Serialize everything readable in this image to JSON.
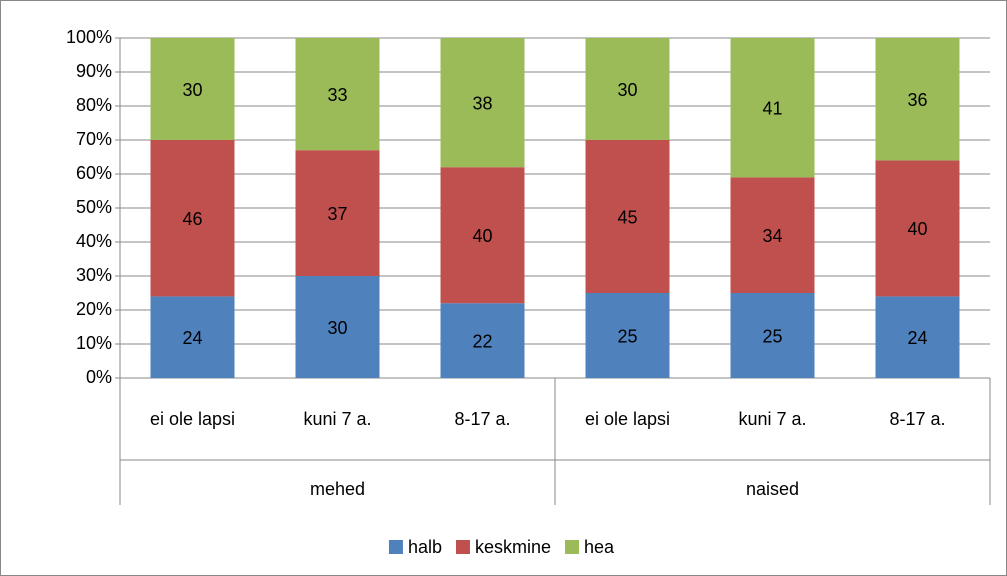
{
  "chart_data": {
    "type": "stacked_bar_100",
    "groups": [
      "mehed",
      "naised"
    ],
    "categories": [
      "ei ole lapsi",
      "kuni 7 a.",
      "8-17 a.",
      "ei ole lapsi",
      "kuni 7 a.",
      "8-17 a."
    ],
    "series": [
      {
        "name": "halb",
        "color": "#4f81bd",
        "values": [
          24,
          30,
          22,
          25,
          25,
          24
        ]
      },
      {
        "name": "keskmine",
        "color": "#c0504d",
        "values": [
          46,
          37,
          40,
          45,
          34,
          40
        ]
      },
      {
        "name": "hea",
        "color": "#9bbb59",
        "values": [
          30,
          33,
          38,
          30,
          41,
          36
        ]
      }
    ],
    "ylim": [
      0,
      100
    ],
    "yticks": [
      {
        "value": 0,
        "label": "0%"
      },
      {
        "value": 10,
        "label": "10%"
      },
      {
        "value": 20,
        "label": "20%"
      },
      {
        "value": 30,
        "label": "30%"
      },
      {
        "value": 40,
        "label": "40%"
      },
      {
        "value": 50,
        "label": "50%"
      },
      {
        "value": 60,
        "label": "60%"
      },
      {
        "value": 70,
        "label": "70%"
      },
      {
        "value": 80,
        "label": "80%"
      },
      {
        "value": 90,
        "label": "90%"
      },
      {
        "value": 100,
        "label": "100%"
      }
    ],
    "grid": true,
    "legend": "bottom"
  }
}
